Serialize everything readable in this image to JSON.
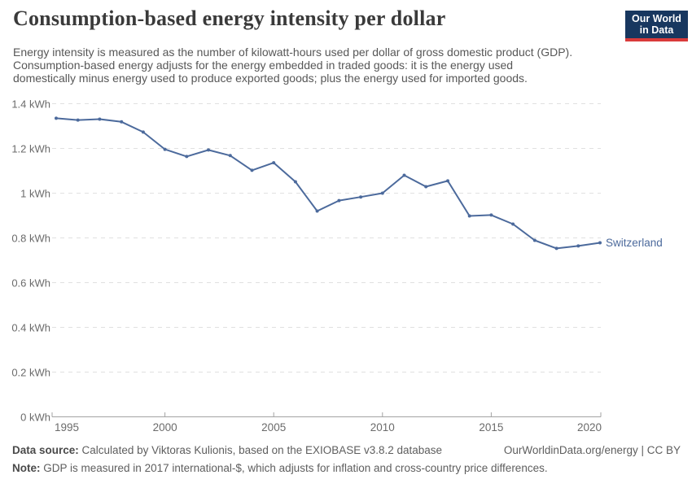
{
  "header": {
    "title": "Consumption-based energy intensity per dollar",
    "subtitle_lines": [
      "Energy intensity is measured as the number of kilowatt-hours used per dollar of gross domestic product (GDP).",
      "Consumption-based energy adjusts for the energy embedded in traded goods: it is the energy used",
      "domestically minus energy used to produce exported goods; plus the energy used for imported goods."
    ]
  },
  "logo": {
    "line1": "Our World",
    "line2": "in Data",
    "bg_color": "#18375F",
    "stripe_color": "#D93B3B"
  },
  "chart_data": {
    "type": "line",
    "title": "Consumption-based energy intensity per dollar",
    "xlabel": "",
    "ylabel": "",
    "unit": "kWh",
    "x": [
      1995,
      1996,
      1997,
      1998,
      1999,
      2000,
      2001,
      2002,
      2003,
      2004,
      2005,
      2006,
      2007,
      2008,
      2009,
      2010,
      2011,
      2012,
      2013,
      2014,
      2015,
      2016,
      2017,
      2018,
      2019,
      2020
    ],
    "series": [
      {
        "name": "Switzerland",
        "color": "#4C6A9C",
        "values": [
          1.335,
          1.327,
          1.331,
          1.319,
          1.273,
          1.196,
          1.164,
          1.193,
          1.168,
          1.102,
          1.136,
          1.051,
          0.92,
          0.967,
          0.983,
          1.0,
          1.08,
          1.029,
          1.055,
          0.898,
          0.902,
          0.862,
          0.789,
          0.753,
          0.764,
          0.778
        ]
      }
    ],
    "ylim": [
      0,
      1.4
    ],
    "xlim": [
      1995,
      2020
    ],
    "yticks": [
      {
        "value": 0,
        "label": "0 kWh"
      },
      {
        "value": 0.2,
        "label": "0.2 kWh"
      },
      {
        "value": 0.4,
        "label": "0.4 kWh"
      },
      {
        "value": 0.6,
        "label": "0.6 kWh"
      },
      {
        "value": 0.8,
        "label": "0.8 kWh"
      },
      {
        "value": 1,
        "label": "1 kWh"
      },
      {
        "value": 1.2,
        "label": "1.2 kWh"
      },
      {
        "value": 1.4,
        "label": "1.4 kWh"
      }
    ],
    "xticks": [
      {
        "value": 1995,
        "label": "1995"
      },
      {
        "value": 2000,
        "label": "2000"
      },
      {
        "value": 2005,
        "label": "2005"
      },
      {
        "value": 2010,
        "label": "2010"
      },
      {
        "value": 2015,
        "label": "2015"
      },
      {
        "value": 2020,
        "label": "2020"
      }
    ],
    "grid": "horizontal-dashed",
    "legend_position": "end-of-line-label",
    "style": {
      "grid_color": "#e0e0e0",
      "axis_color": "#a3a3a3",
      "tick_label_color": "#6b6b6b"
    }
  },
  "footer": {
    "source_label": "Data source:",
    "source_text": "Calculated by Viktoras Kulionis, based on the EXIOBASE v3.8.2 database",
    "link": "OurWorldinData.org/energy | CC BY",
    "note_label": "Note:",
    "note_text": "GDP is measured in 2017 international-$, which adjusts for inflation and cross-country price differences."
  }
}
